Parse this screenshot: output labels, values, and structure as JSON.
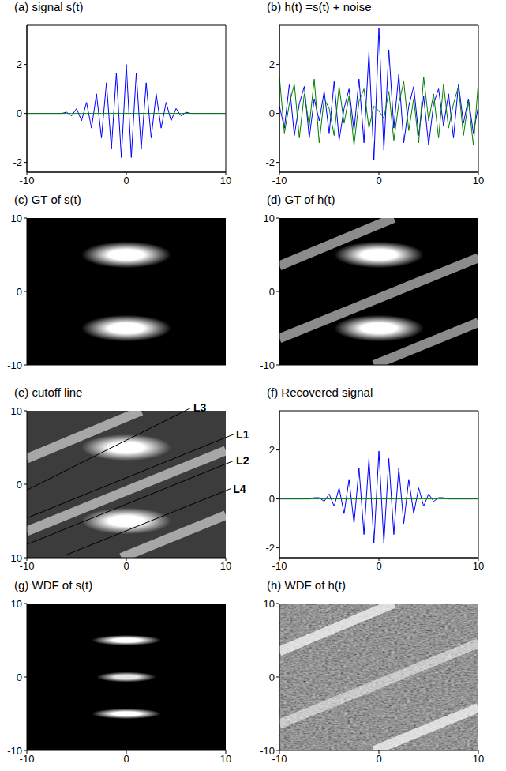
{
  "chart_data": [
    {
      "type": "line",
      "title": "(a) signal s(t)",
      "x": [
        -10,
        -9.5,
        -9,
        -8.5,
        -8,
        -7.5,
        -7,
        -6.5,
        -6,
        -5.5,
        -5,
        -4.5,
        -4,
        -3.5,
        -3,
        -2.5,
        -2,
        -1.5,
        -1,
        -0.5,
        0,
        0.5,
        1,
        1.5,
        2,
        2.5,
        3,
        3.5,
        4,
        4.5,
        5,
        5.5,
        6,
        6.5,
        7,
        7.5,
        8,
        8.5,
        9,
        9.5,
        10
      ],
      "series": [
        {
          "color": "#0000ff",
          "values": [
            0,
            0,
            0,
            0,
            0,
            0,
            0,
            0,
            0.05,
            -0.1,
            0.2,
            -0.3,
            0.45,
            -0.6,
            0.8,
            -1.0,
            1.25,
            -1.45,
            1.65,
            -1.8,
            2.0,
            -1.8,
            1.65,
            -1.45,
            1.25,
            -1.0,
            0.8,
            -0.6,
            0.45,
            -0.3,
            0.2,
            -0.1,
            0.05,
            0,
            0,
            0,
            0,
            0,
            0,
            0,
            0
          ]
        },
        {
          "color": "#008000",
          "values": [
            0,
            0,
            0,
            0,
            0,
            0,
            0,
            0,
            0,
            0,
            0,
            0,
            0,
            0,
            0,
            0,
            0,
            0,
            0,
            0,
            0,
            0,
            0,
            0,
            0,
            0,
            0,
            0,
            0,
            0,
            0,
            0,
            0,
            0,
            0,
            0,
            0,
            0,
            0,
            0,
            0
          ]
        }
      ],
      "xlim": [
        -10,
        10
      ],
      "xticks": [
        -10,
        0,
        10
      ],
      "ylim": [
        -2.4,
        3.6
      ],
      "yticks": [
        -2,
        0,
        2
      ]
    },
    {
      "type": "line",
      "title": "(b) h(t) =s(t) + noise",
      "x": [
        -10,
        -9.5,
        -9,
        -8.5,
        -8,
        -7.5,
        -7,
        -6.5,
        -6,
        -5.5,
        -5,
        -4.5,
        -4,
        -3.5,
        -3,
        -2.5,
        -2,
        -1.5,
        -1,
        -0.5,
        0,
        0.5,
        1,
        1.5,
        2,
        2.5,
        3,
        3.5,
        4,
        4.5,
        5,
        5.5,
        6,
        6.5,
        7,
        7.5,
        8,
        8.5,
        9,
        9.5,
        10
      ],
      "series": [
        {
          "color": "#0000ff",
          "values": [
            0.3,
            -0.6,
            1.2,
            -0.9,
            0.4,
            1.1,
            -1.0,
            0.6,
            -0.3,
            0.9,
            -0.8,
            1.3,
            -1.1,
            0.2,
            1.0,
            -0.7,
            1.4,
            -1.2,
            2.5,
            -1.9,
            3.5,
            -1.5,
            2.6,
            -0.6,
            1.6,
            -1.2,
            0.3,
            1.1,
            -0.9,
            0.7,
            -1.3,
            0.4,
            1.0,
            -0.5,
            0.8,
            -1.0,
            1.2,
            -0.4,
            0.6,
            -0.8,
            0.3
          ]
        },
        {
          "color": "#008000",
          "values": [
            1.5,
            -0.8,
            0.4,
            1.2,
            -1.0,
            0.8,
            -0.5,
            1.4,
            -1.2,
            0.6,
            0.2,
            -0.9,
            1.1,
            -0.4,
            0.7,
            -1.3,
            0.5,
            1.0,
            -0.6,
            0.3,
            0.1,
            -0.2,
            0.9,
            -1.1,
            0.4,
            1.3,
            -0.7,
            0.6,
            -1.2,
            1.5,
            -0.3,
            0.8,
            -1.0,
            1.2,
            -0.6,
            0.4,
            1.1,
            -0.9,
            0.5,
            -1.3,
            1.3
          ]
        }
      ],
      "xlim": [
        -10,
        10
      ],
      "xticks": [
        -10,
        0,
        10
      ],
      "ylim": [
        -2.4,
        3.6
      ],
      "yticks": [
        -2,
        0,
        2
      ]
    },
    {
      "type": "heatmap",
      "title": "(c) GT of s(t)",
      "color": "#000000",
      "xlim": [
        -10,
        10
      ],
      "xticks": [
        -10,
        0,
        10
      ],
      "ylim": [
        -10,
        10
      ],
      "yticks": [
        -10,
        0,
        10
      ],
      "tick_labels": "y",
      "bright_regions": [
        {
          "x": [
            -4.5,
            4.5
          ],
          "y": [
            3.2,
            6.8
          ],
          "value": 1
        },
        {
          "x": [
            -4.5,
            4.5
          ],
          "y": [
            -6.8,
            -3.2
          ],
          "value": 1
        }
      ]
    },
    {
      "type": "heatmap",
      "title": "(d) GT of h(t)",
      "color": "#000000",
      "xlim": [
        -10,
        10
      ],
      "xticks": [
        -10,
        0,
        10
      ],
      "ylim": [
        -10,
        10
      ],
      "yticks": [
        -10,
        0,
        10
      ],
      "tick_labels": "y",
      "bright_regions": [
        {
          "x": [
            -4.5,
            4.5
          ],
          "y": [
            3.2,
            6.8
          ],
          "value": 1
        },
        {
          "x": [
            -4.5,
            4.5
          ],
          "y": [
            -6.8,
            -3.2
          ],
          "value": 1
        }
      ],
      "bands": [
        {
          "from": [
            -10,
            3.5
          ],
          "to": [
            1.5,
            10
          ],
          "value": 0.55
        },
        {
          "from": [
            -10,
            -6.4
          ],
          "to": [
            10,
            4.6
          ],
          "value": 0.55
        },
        {
          "from": [
            -0.5,
            -10
          ],
          "to": [
            10,
            -4.2
          ],
          "value": 0.55
        }
      ]
    },
    {
      "type": "heatmap",
      "title": "(e) cutoff line",
      "color": "#3c3c3c",
      "xlim": [
        -10,
        10
      ],
      "xticks": [
        -10,
        0,
        10
      ],
      "ylim": [
        -10,
        10
      ],
      "yticks": [
        -10,
        0,
        10
      ],
      "bright_regions": [
        {
          "x": [
            -4.5,
            4.5
          ],
          "y": [
            3.2,
            6.8
          ],
          "value": 1
        },
        {
          "x": [
            -4.5,
            4.5
          ],
          "y": [
            -6.8,
            -3.2
          ],
          "value": 1
        }
      ],
      "bands": [
        {
          "from": [
            -10,
            3.5
          ],
          "to": [
            1.5,
            10
          ],
          "value": 0.55
        },
        {
          "from": [
            -10,
            -6.4
          ],
          "to": [
            10,
            4.6
          ],
          "value": 0.55
        },
        {
          "from": [
            -0.5,
            -10
          ],
          "to": [
            10,
            -4.2
          ],
          "value": 0.55
        }
      ],
      "lines": [
        {
          "label": "L3",
          "from": [
            -10,
            -0.8
          ],
          "to": [
            6.5,
            10.4
          ]
        },
        {
          "label": "L1",
          "from": [
            -10,
            -4.6
          ],
          "to": [
            10.8,
            6.8
          ]
        },
        {
          "label": "L2",
          "from": [
            -10,
            -8.2
          ],
          "to": [
            10.8,
            3.2
          ]
        },
        {
          "label": "L4",
          "from": [
            -6,
            -9.6
          ],
          "to": [
            10.5,
            -0.6
          ]
        }
      ]
    },
    {
      "type": "line",
      "title": "(f) Recovered signal",
      "x": [
        -10,
        -9.5,
        -9,
        -8.5,
        -8,
        -7.5,
        -7,
        -6.5,
        -6,
        -5.5,
        -5,
        -4.5,
        -4,
        -3.5,
        -3,
        -2.5,
        -2,
        -1.5,
        -1,
        -0.5,
        0,
        0.5,
        1,
        1.5,
        2,
        2.5,
        3,
        3.5,
        4,
        4.5,
        5,
        5.5,
        6,
        6.5,
        7,
        7.5,
        8,
        8.5,
        9,
        9.5,
        10
      ],
      "series": [
        {
          "color": "#0000ff",
          "values": [
            0,
            0,
            0,
            0,
            0,
            0,
            0,
            0.05,
            0.05,
            -0.1,
            0.2,
            -0.3,
            0.45,
            -0.6,
            0.8,
            -1.0,
            1.25,
            -1.45,
            1.65,
            -1.8,
            1.95,
            -1.8,
            1.65,
            -1.45,
            1.25,
            -1.0,
            0.8,
            -0.6,
            0.45,
            -0.3,
            0.2,
            -0.1,
            0.05,
            0.05,
            0,
            0,
            0,
            0,
            0,
            0,
            0
          ]
        },
        {
          "color": "#008000",
          "values": [
            0,
            0,
            0,
            0,
            0,
            0,
            0,
            0,
            0,
            0,
            0,
            0,
            0,
            0,
            0,
            0,
            0,
            0,
            0,
            0,
            0,
            0,
            0,
            0,
            0,
            0,
            0,
            0,
            0,
            0,
            0,
            0,
            0,
            0,
            0,
            0,
            0,
            0,
            0,
            0,
            0
          ]
        }
      ],
      "xlim": [
        -10,
        10
      ],
      "xticks": [
        -10,
        0,
        10
      ],
      "ylim": [
        -2.4,
        3.6
      ],
      "yticks": [
        -2,
        0,
        2
      ]
    },
    {
      "type": "heatmap",
      "title": "(g) WDF of s(t)",
      "color": "#000000",
      "xlim": [
        -10,
        10
      ],
      "xticks": [
        -10,
        0,
        10
      ],
      "ylim": [
        -10,
        10
      ],
      "yticks": [
        -10,
        0,
        10
      ],
      "bright_regions": [
        {
          "x": [
            -3.5,
            3.5
          ],
          "y": [
            4.3,
            5.7
          ],
          "value": 1
        },
        {
          "x": [
            -3,
            3
          ],
          "y": [
            -0.7,
            0.7
          ],
          "value": 0.9
        },
        {
          "x": [
            -3.5,
            3.5
          ],
          "y": [
            -5.7,
            -4.3
          ],
          "value": 1
        }
      ]
    },
    {
      "type": "heatmap",
      "title": "(h) WDF of h(t)",
      "color": "#000000",
      "noise_level": 0.75,
      "xlim": [
        -10,
        10
      ],
      "xticks": [
        -10,
        0,
        10
      ],
      "ylim": [
        -10,
        10
      ],
      "yticks": [
        -10,
        0,
        10
      ],
      "bands": [
        {
          "from": [
            -10,
            3.5
          ],
          "to": [
            1.5,
            10
          ],
          "value": 0.7
        },
        {
          "from": [
            -10,
            -6.4
          ],
          "to": [
            10,
            4.6
          ],
          "value": 0.5
        },
        {
          "from": [
            -0.5,
            -10
          ],
          "to": [
            10,
            -4.2
          ],
          "value": 0.7
        }
      ]
    }
  ]
}
